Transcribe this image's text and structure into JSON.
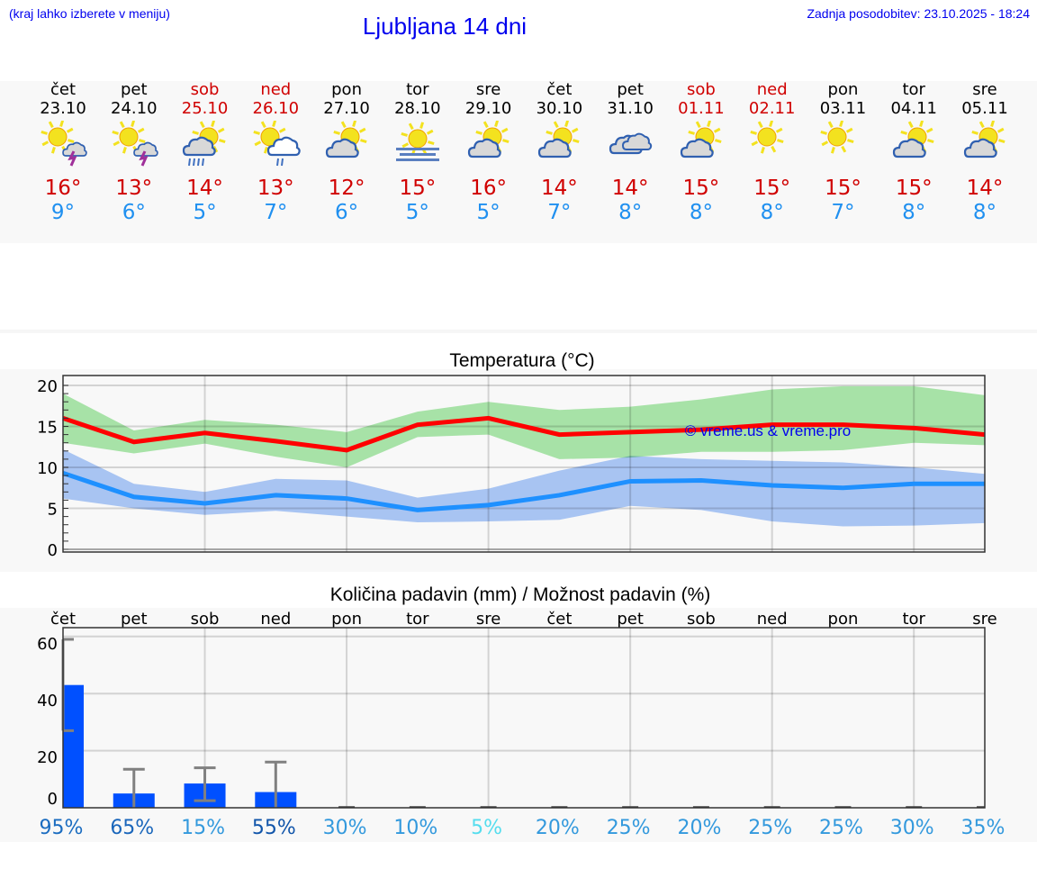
{
  "header": {
    "hint": "(kraj lahko izberete v meniju)",
    "title": "Ljubljana 14 dni",
    "updated": "Zadnja posodobitev: 23.10.2025 - 18:24"
  },
  "colors": {
    "weekend": "#d00000",
    "max_temp": "#d00000",
    "min_temp": "#2090f0",
    "bar": "#0050ff",
    "max_line": "#ff0000",
    "min_line": "#1e90ff",
    "max_band": "#a8e8a8",
    "min_band": "#a8c4f2"
  },
  "days": [
    {
      "name": "čet",
      "date": "23.10",
      "weekend": false,
      "icon": "sun-cloud-thunder",
      "max": "16°",
      "min": "9°"
    },
    {
      "name": "pet",
      "date": "24.10",
      "weekend": false,
      "icon": "sun-cloud-thunder",
      "max": "13°",
      "min": "6°"
    },
    {
      "name": "sob",
      "date": "25.10",
      "weekend": true,
      "icon": "sun-cloud-rain",
      "max": "14°",
      "min": "5°"
    },
    {
      "name": "ned",
      "date": "26.10",
      "weekend": true,
      "icon": "sun-cloud-light-rain",
      "max": "13°",
      "min": "7°"
    },
    {
      "name": "pon",
      "date": "27.10",
      "weekend": false,
      "icon": "sun-cloud",
      "max": "12°",
      "min": "6°"
    },
    {
      "name": "tor",
      "date": "28.10",
      "weekend": false,
      "icon": "sun-fog",
      "max": "15°",
      "min": "5°"
    },
    {
      "name": "sre",
      "date": "29.10",
      "weekend": false,
      "icon": "sun-cloud",
      "max": "16°",
      "min": "5°"
    },
    {
      "name": "čet",
      "date": "30.10",
      "weekend": false,
      "icon": "sun-cloud",
      "max": "14°",
      "min": "7°"
    },
    {
      "name": "pet",
      "date": "31.10",
      "weekend": false,
      "icon": "cloudy",
      "max": "14°",
      "min": "8°"
    },
    {
      "name": "sob",
      "date": "01.11",
      "weekend": true,
      "icon": "sun-cloud",
      "max": "15°",
      "min": "8°"
    },
    {
      "name": "ned",
      "date": "02.11",
      "weekend": true,
      "icon": "sun",
      "max": "15°",
      "min": "8°"
    },
    {
      "name": "pon",
      "date": "03.11",
      "weekend": false,
      "icon": "sun",
      "max": "15°",
      "min": "7°"
    },
    {
      "name": "tor",
      "date": "04.11",
      "weekend": false,
      "icon": "sun-cloud",
      "max": "15°",
      "min": "8°"
    },
    {
      "name": "sre",
      "date": "05.11",
      "weekend": false,
      "icon": "sun-cloud",
      "max": "14°",
      "min": "8°"
    }
  ],
  "chart_data": [
    {
      "type": "line",
      "title": "Temperatura (°C)",
      "watermark": "© vreme.us & vreme.pro",
      "ylim": [
        0,
        20
      ],
      "yticks": [
        "0",
        "5",
        "10",
        "15",
        "20"
      ],
      "grid": true,
      "series": [
        {
          "values": [
            16,
            13.1,
            14.2,
            13.2,
            12.1,
            15.2,
            16,
            14,
            14.3,
            14.6,
            15.2,
            15.2,
            14.8,
            14
          ],
          "band_high": [
            19,
            14.5,
            15.8,
            15.2,
            14.3,
            16.8,
            18,
            17,
            17.4,
            18.3,
            19.5,
            19.9,
            19.9,
            18.8
          ],
          "band_low": [
            13,
            11.7,
            12.9,
            11.3,
            10,
            13.7,
            14,
            11,
            11.2,
            11.9,
            11.9,
            12.1,
            13,
            12.7
          ]
        },
        {
          "values": [
            9.3,
            6.4,
            5.6,
            6.6,
            6.2,
            4.8,
            5.4,
            6.6,
            8.3,
            8.4,
            7.8,
            7.5,
            8,
            8
          ],
          "band_high": [
            12.2,
            8,
            7,
            8.6,
            8.4,
            6.3,
            7.4,
            9.6,
            11.4,
            11,
            10.8,
            10.6,
            10,
            9.2
          ],
          "band_low": [
            6.2,
            5,
            4.2,
            4.7,
            4,
            3.3,
            3.4,
            3.6,
            5.3,
            4.8,
            3.4,
            2.8,
            2.9,
            3.2
          ]
        }
      ]
    },
    {
      "type": "bar",
      "title": "Količina padavin (mm) / Možnost padavin (%)",
      "categories": [
        "čet",
        "pet",
        "sob",
        "ned",
        "pon",
        "tor",
        "sre",
        "čet",
        "pet",
        "sob",
        "ned",
        "pon",
        "tor",
        "sre"
      ],
      "ylim": [
        0,
        60
      ],
      "yticks": [
        "0",
        "20",
        "40",
        "60"
      ],
      "values": [
        43,
        5,
        8.5,
        5.5,
        0,
        0,
        0,
        0,
        0,
        0,
        0,
        0,
        0,
        0
      ],
      "error_low": [
        27,
        0,
        2.5,
        0,
        0,
        0,
        0,
        0,
        0,
        0,
        0,
        0,
        0,
        0
      ],
      "error_high": [
        59,
        13.5,
        14,
        16,
        0,
        0,
        0,
        0,
        0,
        0,
        0,
        0,
        0,
        0
      ],
      "probability": [
        "95%",
        "65%",
        "15%",
        "55%",
        "30%",
        "10%",
        "5%",
        "20%",
        "25%",
        "20%",
        "25%",
        "25%",
        "30%",
        "35%"
      ],
      "probability_colors": [
        "#1a6cc0",
        "#1a66bb",
        "#3399dd",
        "#1155aa",
        "#3399dd",
        "#3399dd",
        "#55ddee",
        "#3399dd",
        "#3399dd",
        "#3399dd",
        "#3399dd",
        "#3399dd",
        "#3399dd",
        "#3399dd"
      ]
    }
  ]
}
